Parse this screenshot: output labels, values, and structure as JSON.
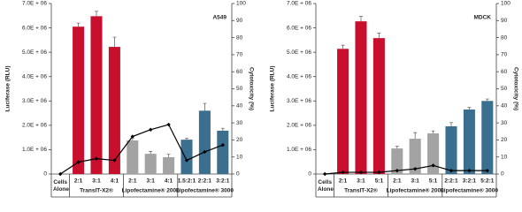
{
  "chart_data": [
    {
      "type": "bar",
      "title": "A549",
      "y_label": "Luciferase (RLU)",
      "y2_label": "Cytotoxicity (%)",
      "groups": [
        {
          "label": "Cells Alone",
          "categories": [
            null
          ]
        },
        {
          "label": "TransIT-X2®",
          "categories": [
            "2:1",
            "3:1",
            "4:1"
          ]
        },
        {
          "label": "Lipofectamine® 2000",
          "categories": [
            "2:1",
            "3:1",
            "4:1"
          ]
        },
        {
          "label": "Lipofectamine® 3000",
          "categories": [
            "1.5:2:1",
            "2:2:1",
            "3:2:1"
          ]
        }
      ],
      "series": [
        {
          "type": "bar",
          "values": [
            0,
            6050000,
            6480000,
            5220000,
            1380000,
            830000,
            690000,
            1410000,
            2600000,
            1780000
          ],
          "errors": [
            0,
            150000,
            200000,
            400000,
            100000,
            100000,
            120000,
            50000,
            300000,
            100000
          ],
          "colors": [
            "#c8102e",
            "#c8102e",
            "#c8102e",
            "#c8102e",
            "#a3a3a3",
            "#a3a3a3",
            "#a3a3a3",
            "#3b6f8f",
            "#3b6f8f",
            "#3b6f8f"
          ]
        },
        {
          "type": "line",
          "axis": "y2",
          "color": "#000000",
          "values": [
            0,
            7,
            9,
            8,
            22,
            26,
            29,
            8,
            13,
            17
          ]
        }
      ],
      "ylim": [
        0,
        7000000
      ],
      "yticks": [
        0,
        {
          "value": 1000000,
          "label": "1.0E + 06"
        },
        {
          "value": 2000000,
          "label": "2.0E + 06"
        },
        {
          "value": 3000000,
          "label": "3.0E + 06"
        },
        {
          "value": 4000000,
          "label": "4.0E + 06"
        },
        {
          "value": 5000000,
          "label": "5.0E + 06"
        },
        {
          "value": 6000000,
          "label": "6.0E + 06"
        },
        {
          "value": 7000000,
          "label": "7.0E + 06"
        }
      ],
      "y2lim": [
        0,
        100
      ],
      "y2ticks": [
        0,
        10,
        20,
        30,
        40,
        50,
        60,
        70,
        80,
        90,
        100
      ]
    },
    {
      "type": "bar",
      "title": "MDCK",
      "y_label": "Luciferase (RLU)",
      "y2_label": "Cytotoxicity (%)",
      "groups": [
        {
          "label": "Cells Alone",
          "categories": [
            null
          ]
        },
        {
          "label": "TransIT-X2®",
          "categories": [
            "2:1",
            "3:1",
            "5:1"
          ]
        },
        {
          "label": "Lipofectamine® 2000",
          "categories": [
            "2:1",
            "3:1",
            "5:1"
          ]
        },
        {
          "label": "Lipofectamine® 3000",
          "categories": [
            "2:2:1",
            "3:2:1",
            "5:2:1"
          ]
        }
      ],
      "series": [
        {
          "type": "bar",
          "values": [
            0,
            5140000,
            6270000,
            5580000,
            1050000,
            1450000,
            1670000,
            1960000,
            2650000,
            3000000
          ],
          "errors": [
            0,
            150000,
            200000,
            200000,
            100000,
            250000,
            100000,
            150000,
            80000,
            80000
          ],
          "colors": [
            "#c8102e",
            "#c8102e",
            "#c8102e",
            "#c8102e",
            "#a3a3a3",
            "#a3a3a3",
            "#a3a3a3",
            "#3b6f8f",
            "#3b6f8f",
            "#3b6f8f"
          ]
        },
        {
          "type": "line",
          "axis": "y2",
          "color": "#000000",
          "values": [
            0,
            1,
            1,
            1,
            2,
            3,
            5,
            2,
            2,
            2
          ]
        }
      ],
      "ylim": [
        0,
        7000000
      ],
      "yticks": [
        0,
        {
          "value": 1000000,
          "label": "1.0E + 06"
        },
        {
          "value": 2000000,
          "label": "2.0E + 06"
        },
        {
          "value": 3000000,
          "label": "3.0E + 06"
        },
        {
          "value": 4000000,
          "label": "4.0E + 06"
        },
        {
          "value": 5000000,
          "label": "5.0E + 06"
        },
        {
          "value": 6000000,
          "label": "6.0E + 06"
        },
        {
          "value": 7000000,
          "label": "7.0E + 06"
        }
      ],
      "y2lim": [
        0,
        100
      ],
      "y2ticks": [
        0,
        10,
        20,
        30,
        40,
        50,
        60,
        70,
        80,
        90,
        100
      ]
    }
  ]
}
